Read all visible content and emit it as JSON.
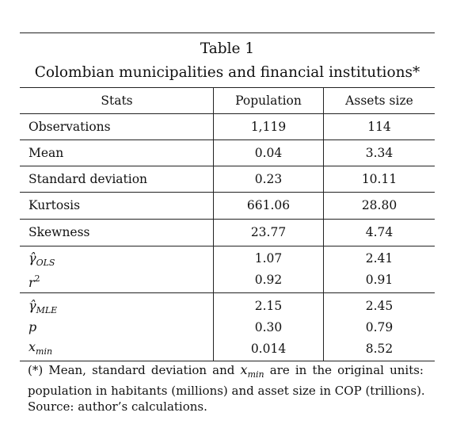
{
  "table": {
    "title_line1": "Table 1",
    "title_line2": "Colombian municipalities and financial institutions*",
    "headers": [
      "Stats",
      "Population",
      "Assets size"
    ],
    "rows": [
      {
        "label": "Observations",
        "population": "1,119",
        "assets": "114"
      },
      {
        "label": "Mean",
        "population": "0.04",
        "assets": "3.34"
      },
      {
        "label": "Standard deviation",
        "population": "0.23",
        "assets": "10.11"
      },
      {
        "label": "Kurtosis",
        "population": "661.06",
        "assets": "28.80"
      },
      {
        "label": "Skewness",
        "population": "23.77",
        "assets": "4.74"
      }
    ],
    "ols_block": [
      {
        "label_base": "γ̂",
        "label_sub": "OLS",
        "population": "1.07",
        "assets": "2.41"
      },
      {
        "label_base": "r",
        "label_sup": "2",
        "population": "0.92",
        "assets": "0.91"
      }
    ],
    "mle_block": [
      {
        "label_base": "γ̂",
        "label_sub": "MLE",
        "population": "2.15",
        "assets": "2.45"
      },
      {
        "label_base": "p",
        "population": "0.30",
        "assets": "0.79"
      },
      {
        "label_base": "x",
        "label_sub": "min",
        "population": "0.014",
        "assets": "8.52"
      }
    ]
  },
  "footnote": {
    "line1_pre": "(*) Mean, standard deviation and",
    "line1_math_base": "x",
    "line1_math_sub": "min",
    "line1_post": "are in the original units:",
    "line2": "population in habitants (millions) and asset size in COP (trillions).",
    "line3": "Source: author’s calculations."
  }
}
